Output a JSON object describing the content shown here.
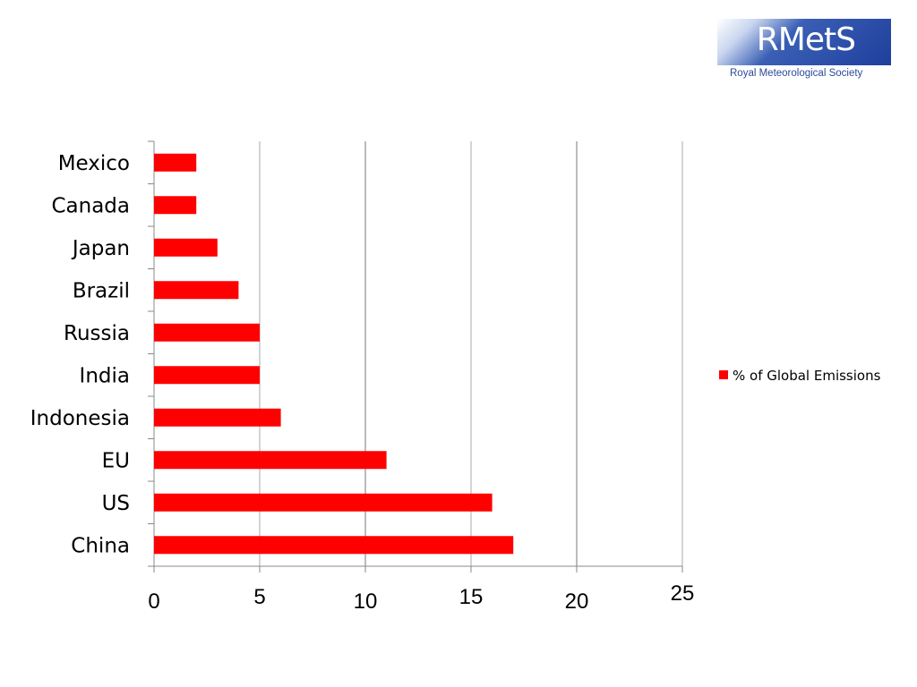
{
  "logo": {
    "name": "RMetS",
    "subtitle": "Royal Meteorological Society"
  },
  "chart_data": {
    "type": "bar",
    "orientation": "horizontal",
    "categories": [
      "China",
      "US",
      "EU",
      "Indonesia",
      "India",
      "Russia",
      "Brazil",
      "Japan",
      "Canada",
      "Mexico"
    ],
    "series": [
      {
        "name": "% of Global Emissions",
        "values": [
          17,
          16,
          11,
          6,
          5,
          5,
          4,
          3,
          2,
          2
        ],
        "color": "#ff0000"
      }
    ],
    "xlim": [
      0,
      25
    ],
    "xticks": [
      "0",
      "5",
      "10",
      "15",
      "20",
      "25"
    ],
    "xlabel": "",
    "ylabel": "",
    "title": "",
    "grid": true,
    "legend_position": "right"
  }
}
